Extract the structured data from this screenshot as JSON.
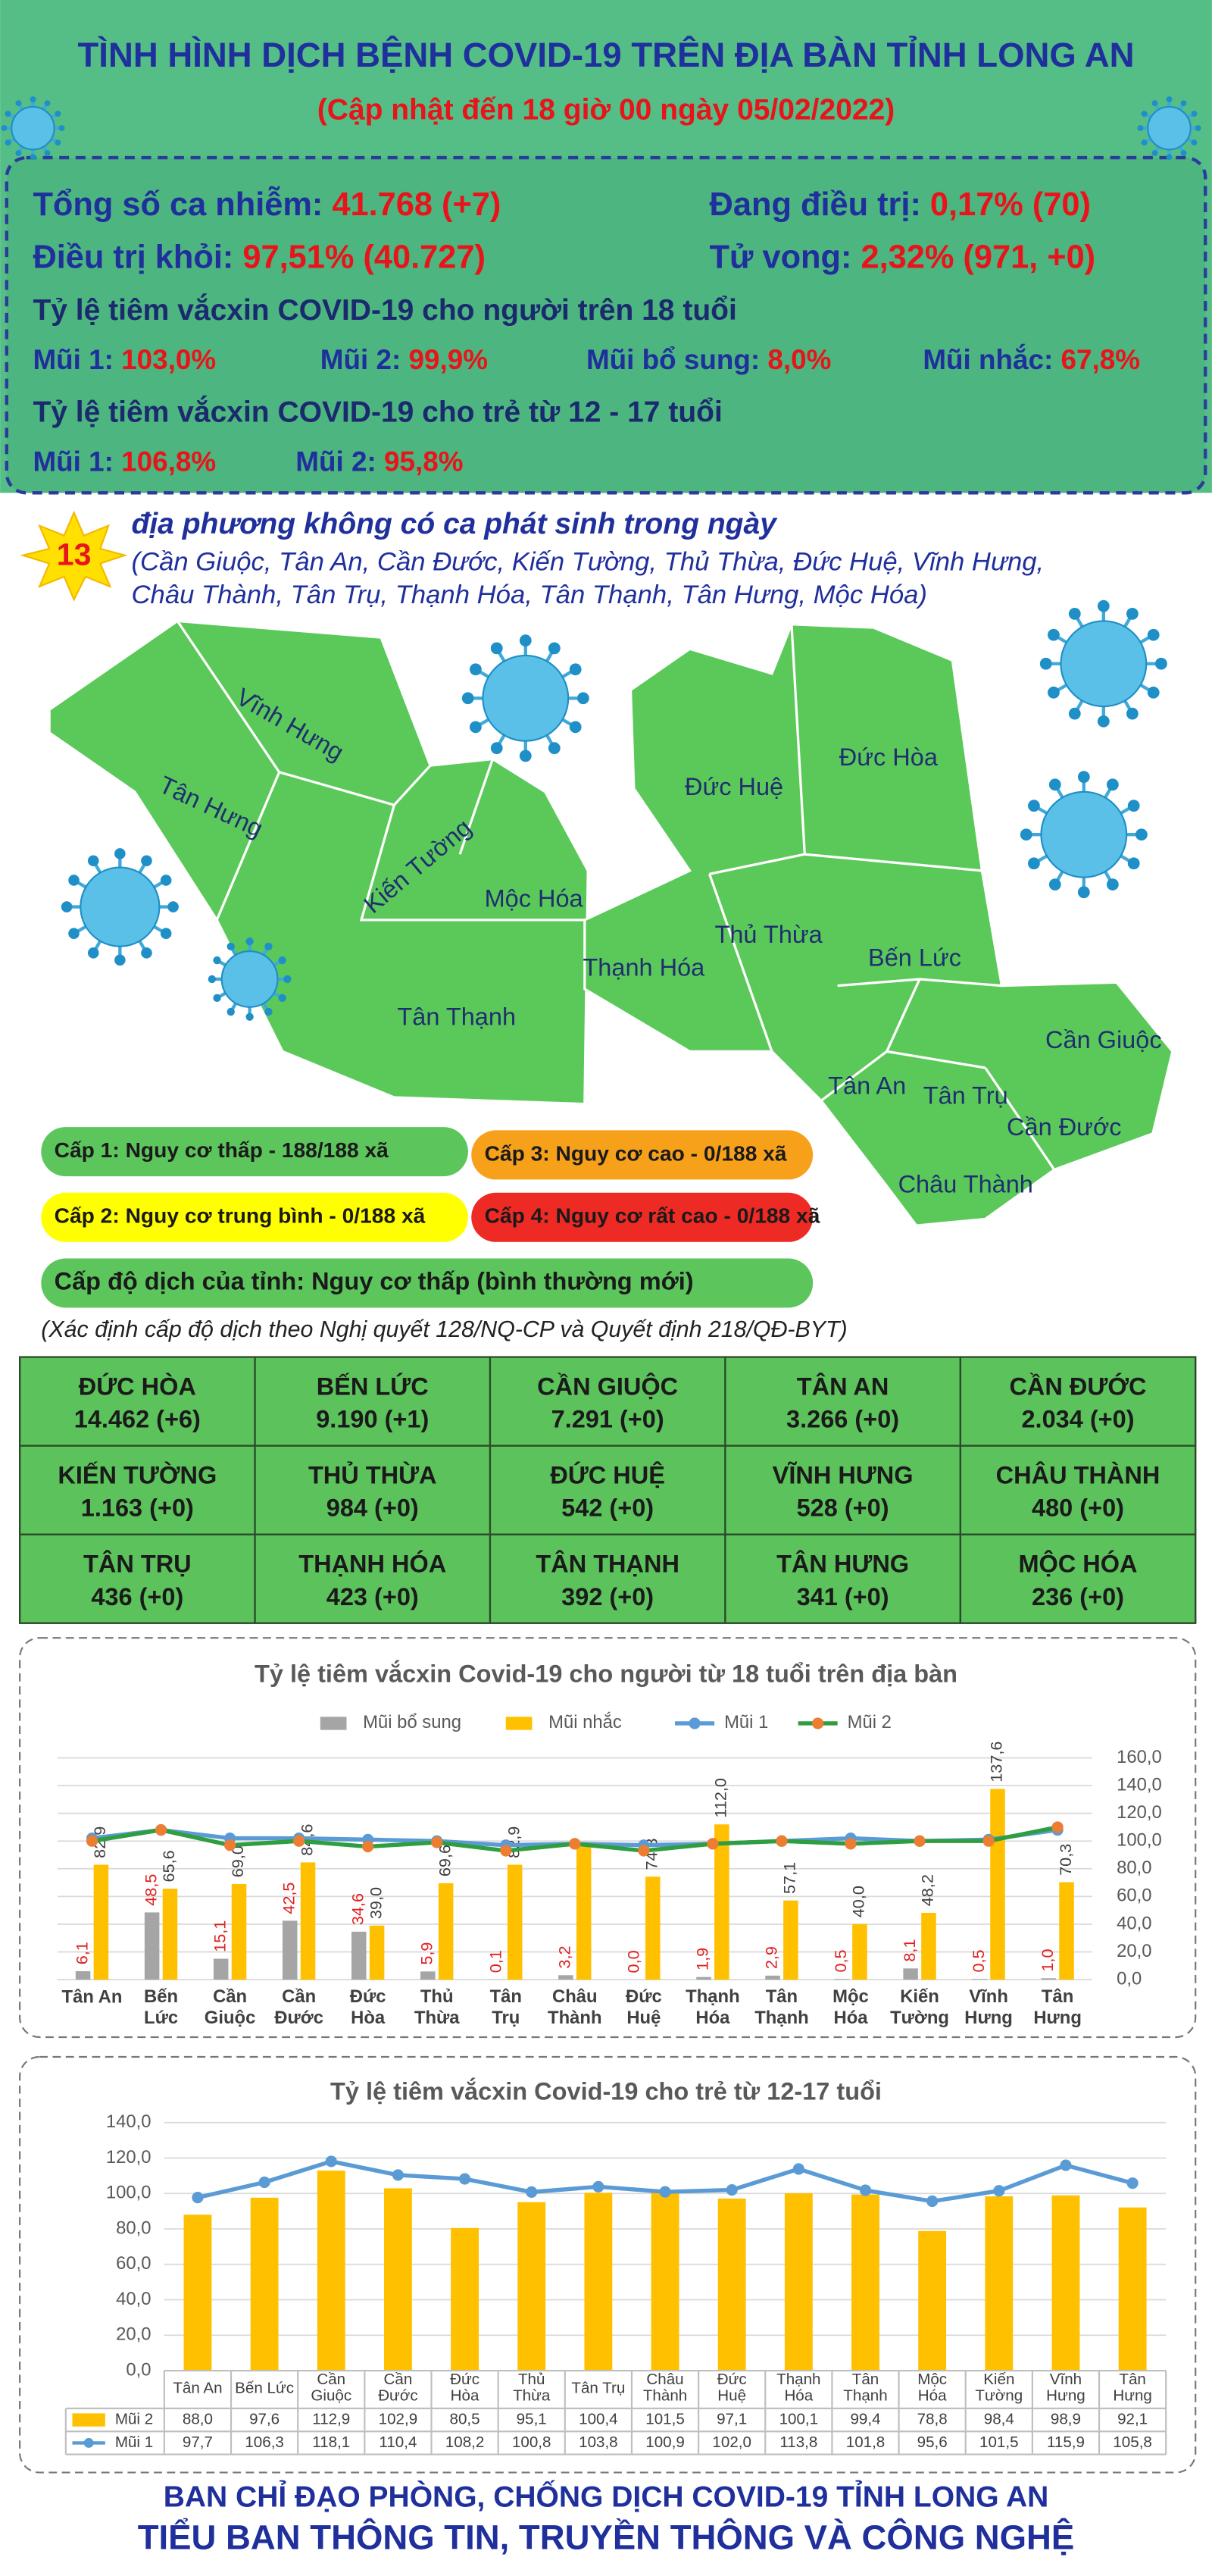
{
  "header": {
    "title": "TÌNH HÌNH DỊCH BỆNH COVID-19 TRÊN ĐỊA BÀN TỈNH LONG AN",
    "subtitle": "(Cập nhật đến 18 giờ 00 ngày 05/02/2022)"
  },
  "stats": {
    "total": {
      "label": "Tổng số ca nhiễm:",
      "value": "41.768 (+7)"
    },
    "treating": {
      "label": "Đang điều trị:",
      "value": "0,17% (70)"
    },
    "recovered": {
      "label": "Điều trị khỏi:",
      "value": "97,51% (40.727)"
    },
    "deaths": {
      "label": "Tử vong:",
      "value": "2,32% (971, +0)"
    },
    "adult": {
      "heading": "Tỷ lệ tiêm vắcxin COVID-19 cho người trên 18 tuổi",
      "doses": [
        {
          "label": "Mũi 1:",
          "value": "103,0%"
        },
        {
          "label": "Mũi 2:",
          "value": "99,9%"
        },
        {
          "label": "Mũi bổ sung:",
          "value": "8,0%"
        },
        {
          "label": "Mũi nhắc:",
          "value": "67,8%"
        }
      ]
    },
    "child": {
      "heading": "Tỷ lệ tiêm vắcxin COVID-19 cho trẻ từ 12 - 17 tuổi",
      "doses": [
        {
          "label": "Mũi 1:",
          "value": "106,8%"
        },
        {
          "label": "Mũi 2:",
          "value": "95,8%"
        }
      ]
    }
  },
  "no_new_cases": {
    "count": "13",
    "heading": "địa phương không có ca phát sinh trong ngày",
    "lines": [
      "(Cần Giuộc, Tân An, Cần Đước, Kiến Tường, Thủ Thừa, Đức Huệ, Vĩnh Hưng,",
      "Châu Thành, Tân Trụ, Thạnh Hóa, Tân Thạnh, Tân Hưng, Mộc Hóa)"
    ]
  },
  "map": {
    "districts": [
      "Vĩnh Hưng",
      "Tân Hưng",
      "Kiến Tường",
      "Mộc Hóa",
      "Tân Thạnh",
      "Thạnh Hóa",
      "Đức Huệ",
      "Đức Hòa",
      "Thủ Thừa",
      "Bến Lức",
      "Cần Giuộc",
      "Tân An",
      "Tân Trụ",
      "Cần Đước",
      "Châu Thành"
    ]
  },
  "levels": {
    "items": [
      {
        "text": "Cấp 1: Nguy cơ thấp - 188/188 xã",
        "color": "#5cc65c"
      },
      {
        "text": "Cấp 3: Nguy cơ cao - 0/188 xã",
        "color": "#f7a11a"
      },
      {
        "text": "Cấp 2: Nguy cơ trung bình - 0/188 xã",
        "color": "#ffff00"
      },
      {
        "text": "Cấp 4: Nguy cơ rất cao - 0/188 xã",
        "color": "#ee2a24"
      }
    ],
    "province": "Cấp độ dịch của tỉnh: Nguy cơ thấp (bình thường mới)",
    "note": "(Xác định cấp độ dịch theo Nghị quyết 128/NQ-CP và Quyết định 218/QĐ-BYT)"
  },
  "table": {
    "cells": [
      [
        "ĐỨC HÒA",
        "14.462 (+6)"
      ],
      [
        "BẾN LỨC",
        "9.190 (+1)"
      ],
      [
        "CẦN GIUỘC",
        "7.291 (+0)"
      ],
      [
        "TÂN AN",
        "3.266 (+0)"
      ],
      [
        "CẦN ĐƯỚC",
        "2.034 (+0)"
      ],
      [
        "KIẾN TƯỜNG",
        "1.163 (+0)"
      ],
      [
        "THỦ THỪA",
        "984 (+0)"
      ],
      [
        "ĐỨC HUỆ",
        "542 (+0)"
      ],
      [
        "VĨNH HƯNG",
        "528 (+0)"
      ],
      [
        "CHÂU THÀNH",
        "480 (+0)"
      ],
      [
        "TÂN TRỤ",
        "436 (+0)"
      ],
      [
        "THẠNH HÓA",
        "423 (+0)"
      ],
      [
        "TÂN THẠNH",
        "392 (+0)"
      ],
      [
        "TÂN HƯNG",
        "341 (+0)"
      ],
      [
        "MỘC HÓA",
        "236 (+0)"
      ]
    ]
  },
  "chart_data": [
    {
      "type": "combo",
      "title": "Tỷ lệ tiêm vắcxin Covid-19 cho người từ 18 tuổi trên địa bàn",
      "categories": [
        "Tân An",
        "Bến\nLức",
        "Cần\nGiuộc",
        "Cần\nĐước",
        "Đức\nHòa",
        "Thủ\nThừa",
        "Tân\nTrụ",
        "Châu\nThành",
        "Đức\nHuệ",
        "Thạnh\nHóa",
        "Tân\nThạnh",
        "Mộc\nHóa",
        "Kiến\nTường",
        "Vĩnh\nHưng",
        "Tân\nHưng"
      ],
      "series": [
        {
          "name": "Mũi bổ sung",
          "type": "bar",
          "color": "#a5a5a5",
          "label_color": "#e02020",
          "values": [
            6.1,
            48.5,
            15.1,
            42.5,
            34.6,
            5.9,
            0.1,
            3.2,
            0.0,
            1.9,
            2.9,
            0.5,
            8.1,
            0.5,
            1.0
          ],
          "value_labels": [
            "6,1",
            "48,5",
            "15,1",
            "42,5",
            "34,6",
            "5,9",
            "0,1",
            "3,2",
            "0,0",
            "1,9",
            "2,9",
            "0,5",
            "8,1",
            "0,5",
            "1,0"
          ]
        },
        {
          "name": "Mũi nhắc",
          "type": "bar",
          "color": "#ffc000",
          "label_color": "#404040",
          "values": [
            82.9,
            65.6,
            69.0,
            84.6,
            39.0,
            69.6,
            82.9,
            96,
            74.3,
            112.0,
            57.1,
            40.0,
            48.2,
            137.6,
            70.3
          ],
          "value_labels": [
            "82,9",
            "65,6",
            "69,0",
            "84,6",
            "39,0",
            "69,6",
            "82,9",
            null,
            "74,3",
            "112,0",
            "57,1",
            "40,0",
            "48,2",
            "137,6",
            "70,3"
          ]
        },
        {
          "name": "Mũi 1",
          "type": "line",
          "color": "#5b9bd5",
          "marker": "#5b9bd5",
          "values": [
            102,
            108,
            102,
            102,
            101,
            100,
            97,
            98,
            97,
            98,
            100,
            102,
            100,
            101,
            108
          ]
        },
        {
          "name": "Mũi 2",
          "type": "line",
          "color": "#2e9e40",
          "marker": "#ed7d31",
          "values": [
            100,
            108,
            97,
            100,
            96,
            99,
            93,
            98,
            93,
            98,
            100,
            98,
            100,
            100,
            110
          ]
        }
      ],
      "ylim": [
        0,
        160
      ],
      "yticks": [
        {
          "value": 0,
          "label": "0,0"
        },
        {
          "value": 20,
          "label": "20,0"
        },
        {
          "value": 40,
          "label": "40,0"
        },
        {
          "value": 60,
          "label": "60,0"
        },
        {
          "value": 80,
          "label": "80,0"
        },
        {
          "value": 100,
          "label": "100,0"
        },
        {
          "value": 120,
          "label": "120,0"
        },
        {
          "value": 140,
          "label": "140,0"
        },
        {
          "value": 160,
          "label": "160,0"
        }
      ],
      "grid": true,
      "legend": "top",
      "axis_side": "right"
    },
    {
      "type": "combo",
      "title": "Tỷ lệ tiêm vắcxin Covid-19 cho trẻ từ 12-17 tuổi",
      "categories": [
        "Tân An",
        "Bến Lức",
        "Cần\nGiuộc",
        "Cần\nĐước",
        "Đức\nHòa",
        "Thủ\nThừa",
        "Tân Trụ",
        "Châu\nThành",
        "Đức\nHuệ",
        "Thạnh\nHóa",
        "Tân\nThạnh",
        "Mộc\nHóa",
        "Kiến\nTường",
        "Vĩnh\nHưng",
        "Tân\nHưng"
      ],
      "series": [
        {
          "name": "Mũi 2",
          "type": "bar",
          "color": "#ffc000",
          "values": [
            88.0,
            97.6,
            112.9,
            102.9,
            80.5,
            95.1,
            100.4,
            101.5,
            97.1,
            100.1,
            99.4,
            78.8,
            98.4,
            98.9,
            92.1
          ],
          "value_labels": [
            "88,0",
            "97,6",
            "112,9",
            "102,9",
            "80,5",
            "95,1",
            "100,4",
            "101,5",
            "97,1",
            "100,1",
            "99,4",
            "78,8",
            "98,4",
            "98,9",
            "92,1"
          ]
        },
        {
          "name": "Mũi 1",
          "type": "line",
          "color": "#5b9bd5",
          "marker": "#5b9bd5",
          "values": [
            97.7,
            106.3,
            118.1,
            110.4,
            108.2,
            100.8,
            103.8,
            100.9,
            102.0,
            113.8,
            101.8,
            95.6,
            101.5,
            115.9,
            105.8
          ],
          "value_labels": [
            "97,7",
            "106,3",
            "118,1",
            "110,4",
            "108,2",
            "100,8",
            "103,8",
            "100,9",
            "102,0",
            "113,8",
            "101,8",
            "95,6",
            "101,5",
            "115,9",
            "105,8"
          ]
        }
      ],
      "ylim": [
        0,
        140
      ],
      "yticks": [
        {
          "value": 0,
          "label": "0,0"
        },
        {
          "value": 20,
          "label": "20,0"
        },
        {
          "value": 40,
          "label": "40,0"
        },
        {
          "value": 60,
          "label": "60,0"
        },
        {
          "value": 80,
          "label": "80,0"
        },
        {
          "value": 100,
          "label": "100,0"
        },
        {
          "value": 120,
          "label": "120,0"
        },
        {
          "value": 140,
          "label": "140,0"
        }
      ],
      "grid": true,
      "data_table": true,
      "axis_side": "left"
    }
  ],
  "footer": {
    "line1": "BAN CHỈ ĐẠO PHÒNG, CHỐNG DỊCH COVID-19 TỈNH LONG AN",
    "line2": "TIỂU BAN THÔNG TIN, TRUYỀN THÔNG VÀ CÔNG NGHỆ"
  }
}
